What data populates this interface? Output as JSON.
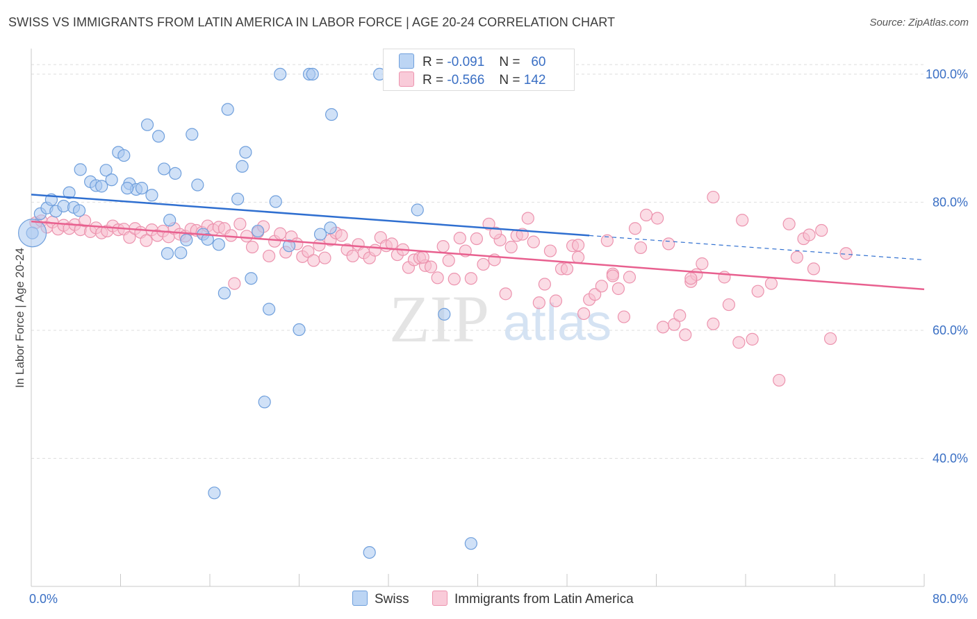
{
  "title": "SWISS VS IMMIGRANTS FROM LATIN AMERICA IN LABOR FORCE | AGE 20-24 CORRELATION CHART",
  "source": "Source: ZipAtlas.com",
  "watermark": {
    "zip": "ZIP",
    "atlas": "atlas"
  },
  "legend_stats": [
    {
      "r_label": "R =",
      "r_value": "-0.091",
      "n_label": "N =",
      "n_value": "60"
    },
    {
      "r_label": "R =",
      "r_value": "-0.566",
      "n_label": "N =",
      "n_value": "142"
    }
  ],
  "colors": {
    "swiss_fill": "#a9c8f0",
    "swiss_stroke": "#6f9fdc",
    "swiss_line": "#2f6fd0",
    "latin_fill": "#f7bfd0",
    "latin_stroke": "#ec93ae",
    "latin_line": "#e8608f",
    "tick_label": "#3a6fc4",
    "grid": "#dedede"
  },
  "chart_data": {
    "type": "scatter",
    "title": "SWISS VS IMMIGRANTS FROM LATIN AMERICA IN LABOR FORCE | AGE 20-24 CORRELATION CHART",
    "xlabel": "",
    "ylabel": "In Labor Force | Age 20-24",
    "xlim": [
      0,
      80
    ],
    "ylim": [
      20,
      104
    ],
    "x_tick_labels": [
      "0.0%",
      "80.0%"
    ],
    "y_ticks": [
      40,
      60,
      80,
      100
    ],
    "y_tick_labels": [
      "40.0%",
      "60.0%",
      "80.0%",
      "100.0%"
    ],
    "grid": true,
    "legend_position": "bottom",
    "series": [
      {
        "name": "Swiss",
        "r": -0.091,
        "n": 60,
        "trend": {
          "x0": 0,
          "y0": 81.2,
          "x1": 50,
          "y1": 74.8,
          "dash_to_x": 80,
          "dash_to_y": 71.0
        },
        "points": [
          [
            0.1,
            75.2
          ],
          [
            0.8,
            78.2
          ],
          [
            1.4,
            79.1
          ],
          [
            1.8,
            80.4
          ],
          [
            2.2,
            78.6
          ],
          [
            2.9,
            79.4
          ],
          [
            3.4,
            81.5
          ],
          [
            3.8,
            79.2
          ],
          [
            4.3,
            78.7
          ],
          [
            4.4,
            85.1
          ],
          [
            5.3,
            83.2
          ],
          [
            5.8,
            82.6
          ],
          [
            6.3,
            82.5
          ],
          [
            6.7,
            85.0
          ],
          [
            7.2,
            83.5
          ],
          [
            7.8,
            87.8
          ],
          [
            8.3,
            87.3
          ],
          [
            8.8,
            82.9
          ],
          [
            9.4,
            82.0
          ],
          [
            9.9,
            82.2
          ],
          [
            10.4,
            92.1
          ],
          [
            10.8,
            81.1
          ],
          [
            11.4,
            90.3
          ],
          [
            11.9,
            85.2
          ],
          [
            12.4,
            77.2
          ],
          [
            12.9,
            84.5
          ],
          [
            13.4,
            72.1
          ],
          [
            13.9,
            74.1
          ],
          [
            14.4,
            90.6
          ],
          [
            14.9,
            82.7
          ],
          [
            15.4,
            75.0
          ],
          [
            15.8,
            74.2
          ],
          [
            16.4,
            34.6
          ],
          [
            16.8,
            73.4
          ],
          [
            17.3,
            65.8
          ],
          [
            17.6,
            94.5
          ],
          [
            18.5,
            80.5
          ],
          [
            18.9,
            85.6
          ],
          [
            19.2,
            87.8
          ],
          [
            19.7,
            68.1
          ],
          [
            20.3,
            75.5
          ],
          [
            20.9,
            48.8
          ],
          [
            21.3,
            63.3
          ],
          [
            21.9,
            80.1
          ],
          [
            22.3,
            100.0
          ],
          [
            23.1,
            73.2
          ],
          [
            24.0,
            60.1
          ],
          [
            24.9,
            100.0
          ],
          [
            25.2,
            100.0
          ],
          [
            25.9,
            75.0
          ],
          [
            26.8,
            76.0
          ],
          [
            26.9,
            93.7
          ],
          [
            30.3,
            25.3
          ],
          [
            31.2,
            100.0
          ],
          [
            34.6,
            78.8
          ],
          [
            37.0,
            62.5
          ],
          [
            39.4,
            26.7
          ],
          [
            41.6,
            100.0
          ],
          [
            8.6,
            82.2
          ],
          [
            12.2,
            72.0
          ]
        ]
      },
      {
        "name": "Immigrants from Latin America",
        "r": -0.566,
        "n": 142,
        "trend": {
          "x0": 0,
          "y0": 77.0,
          "x1": 80,
          "y1": 66.4
        },
        "points": [
          [
            0.4,
            76.8
          ],
          [
            0.9,
            77.1
          ],
          [
            1.4,
            76.1
          ],
          [
            1.9,
            76.9
          ],
          [
            2.4,
            75.8
          ],
          [
            2.9,
            76.4
          ],
          [
            3.4,
            75.9
          ],
          [
            3.9,
            76.5
          ],
          [
            4.4,
            75.7
          ],
          [
            4.8,
            77.1
          ],
          [
            5.3,
            75.4
          ],
          [
            5.8,
            76.0
          ],
          [
            6.3,
            75.2
          ],
          [
            6.8,
            75.5
          ],
          [
            7.3,
            76.3
          ],
          [
            7.8,
            75.7
          ],
          [
            8.3,
            75.8
          ],
          [
            8.8,
            74.5
          ],
          [
            9.3,
            75.9
          ],
          [
            9.8,
            75.3
          ],
          [
            10.3,
            74.0
          ],
          [
            10.8,
            75.7
          ],
          [
            11.3,
            74.8
          ],
          [
            11.8,
            75.5
          ],
          [
            12.3,
            74.6
          ],
          [
            12.8,
            75.9
          ],
          [
            13.3,
            75.0
          ],
          [
            13.8,
            74.7
          ],
          [
            14.3,
            75.8
          ],
          [
            14.8,
            75.6
          ],
          [
            15.3,
            75.3
          ],
          [
            15.8,
            76.3
          ],
          [
            16.3,
            75.7
          ],
          [
            16.8,
            76.1
          ],
          [
            17.3,
            75.9
          ],
          [
            17.9,
            74.8
          ],
          [
            18.2,
            67.3
          ],
          [
            18.7,
            76.6
          ],
          [
            19.3,
            74.7
          ],
          [
            19.8,
            73.0
          ],
          [
            20.3,
            75.3
          ],
          [
            20.8,
            76.2
          ],
          [
            21.3,
            71.6
          ],
          [
            21.8,
            73.9
          ],
          [
            22.3,
            75.1
          ],
          [
            22.8,
            72.2
          ],
          [
            23.3,
            74.6
          ],
          [
            23.8,
            73.5
          ],
          [
            24.3,
            71.5
          ],
          [
            24.8,
            72.3
          ],
          [
            25.3,
            70.9
          ],
          [
            25.8,
            73.3
          ],
          [
            26.3,
            71.3
          ],
          [
            26.8,
            74.1
          ],
          [
            27.3,
            75.2
          ],
          [
            27.8,
            74.8
          ],
          [
            28.3,
            72.6
          ],
          [
            28.8,
            71.6
          ],
          [
            29.3,
            73.4
          ],
          [
            29.8,
            72.1
          ],
          [
            30.3,
            71.3
          ],
          [
            30.8,
            72.5
          ],
          [
            31.3,
            74.5
          ],
          [
            31.8,
            73.2
          ],
          [
            32.3,
            73.5
          ],
          [
            32.8,
            71.8
          ],
          [
            33.3,
            72.6
          ],
          [
            33.8,
            69.8
          ],
          [
            34.3,
            71.0
          ],
          [
            34.8,
            71.3
          ],
          [
            35.3,
            70.1
          ],
          [
            35.8,
            69.9
          ],
          [
            36.4,
            68.2
          ],
          [
            36.9,
            73.1
          ],
          [
            37.4,
            70.9
          ],
          [
            37.9,
            68.0
          ],
          [
            38.4,
            74.4
          ],
          [
            38.9,
            72.4
          ],
          [
            39.4,
            68.1
          ],
          [
            39.9,
            74.3
          ],
          [
            40.5,
            70.3
          ],
          [
            41.0,
            76.6
          ],
          [
            41.5,
            71.0
          ],
          [
            42.0,
            74.1
          ],
          [
            42.5,
            65.7
          ],
          [
            43.0,
            73.0
          ],
          [
            43.5,
            74.8
          ],
          [
            44.0,
            75.0
          ],
          [
            44.5,
            77.5
          ],
          [
            45.0,
            73.8
          ],
          [
            45.5,
            64.3
          ],
          [
            46.0,
            67.2
          ],
          [
            46.5,
            72.4
          ],
          [
            47.0,
            64.6
          ],
          [
            47.5,
            69.6
          ],
          [
            48.0,
            69.6
          ],
          [
            48.5,
            73.2
          ],
          [
            49.0,
            71.4
          ],
          [
            49.5,
            62.6
          ],
          [
            50.0,
            64.8
          ],
          [
            50.5,
            65.6
          ],
          [
            51.1,
            66.9
          ],
          [
            51.6,
            74.0
          ],
          [
            52.1,
            68.8
          ],
          [
            52.6,
            66.5
          ],
          [
            53.1,
            62.1
          ],
          [
            53.6,
            68.3
          ],
          [
            54.1,
            75.9
          ],
          [
            54.6,
            72.9
          ],
          [
            55.1,
            78.0
          ],
          [
            56.1,
            77.5
          ],
          [
            56.6,
            60.5
          ],
          [
            57.1,
            73.5
          ],
          [
            57.6,
            60.9
          ],
          [
            58.1,
            62.3
          ],
          [
            58.6,
            59.3
          ],
          [
            59.1,
            67.6
          ],
          [
            59.6,
            68.7
          ],
          [
            60.1,
            70.4
          ],
          [
            61.1,
            61.0
          ],
          [
            62.1,
            68.3
          ],
          [
            62.5,
            64.0
          ],
          [
            63.4,
            58.1
          ],
          [
            63.7,
            77.2
          ],
          [
            64.6,
            58.6
          ],
          [
            65.1,
            66.1
          ],
          [
            66.3,
            67.3
          ],
          [
            67.0,
            52.2
          ],
          [
            67.9,
            76.6
          ],
          [
            68.6,
            71.4
          ],
          [
            69.2,
            74.3
          ],
          [
            69.7,
            74.9
          ],
          [
            70.1,
            69.6
          ],
          [
            70.8,
            75.6
          ],
          [
            71.6,
            58.7
          ],
          [
            73.0,
            72.0
          ],
          [
            61.1,
            80.8
          ],
          [
            59.1,
            68.1
          ],
          [
            52.1,
            68.5
          ],
          [
            49.0,
            73.3
          ],
          [
            41.6,
            75.2
          ],
          [
            35.1,
            71.4
          ]
        ]
      }
    ]
  }
}
